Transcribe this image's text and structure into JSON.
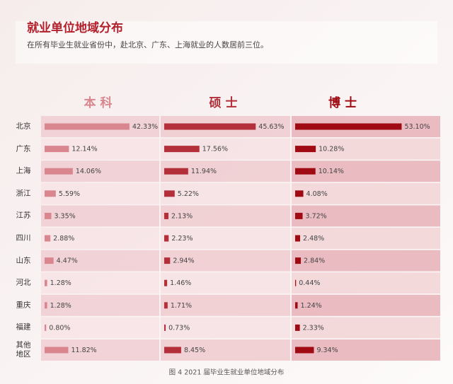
{
  "chart_data": {
    "type": "bar",
    "orientation": "horizontal",
    "title": "就业单位地域分布",
    "subtitle": "在所有毕业生就业省份中，赴北京、广东、上海就业的人数居前三位。",
    "caption": "图 4   2021 届毕业生就业单位地域分布",
    "categories": [
      "北京",
      "广东",
      "上海",
      "浙江",
      "江苏",
      "四川",
      "山东",
      "河北",
      "重庆",
      "福建",
      "其他地区"
    ],
    "xlim": [
      0,
      60
    ],
    "series": [
      {
        "name": "本科",
        "color": "#d9868f",
        "values": [
          42.33,
          12.14,
          14.06,
          5.59,
          3.35,
          2.88,
          4.47,
          1.28,
          1.28,
          0.8,
          11.82
        ],
        "value_labels": [
          "42.33%",
          "12.14%",
          "14.06%",
          "5.59%",
          "3.35%",
          "2.88%",
          "4.47%",
          "1.28%",
          "1.28%",
          "0.80%",
          "11.82%"
        ]
      },
      {
        "name": "硕士",
        "color": "#b3303b",
        "values": [
          45.63,
          17.56,
          11.94,
          5.22,
          2.13,
          2.23,
          2.94,
          1.46,
          1.71,
          0.73,
          8.45
        ],
        "value_labels": [
          "45.63%",
          "17.56%",
          "11.94%",
          "5.22%",
          "2.13%",
          "2.23%",
          "2.94%",
          "1.46%",
          "1.71%",
          "0.73%",
          "8.45%"
        ]
      },
      {
        "name": "博士",
        "color": "#a00a12",
        "values": [
          53.1,
          10.28,
          10.14,
          4.08,
          3.72,
          2.48,
          2.84,
          0.44,
          1.24,
          2.33,
          9.34
        ],
        "value_labels": [
          "53.10%",
          "10.28%",
          "10.14%",
          "4.08%",
          "3.72%",
          "2.48%",
          "2.84%",
          "0.44%",
          "1.24%",
          "2.33%",
          "9.34%"
        ]
      }
    ]
  }
}
